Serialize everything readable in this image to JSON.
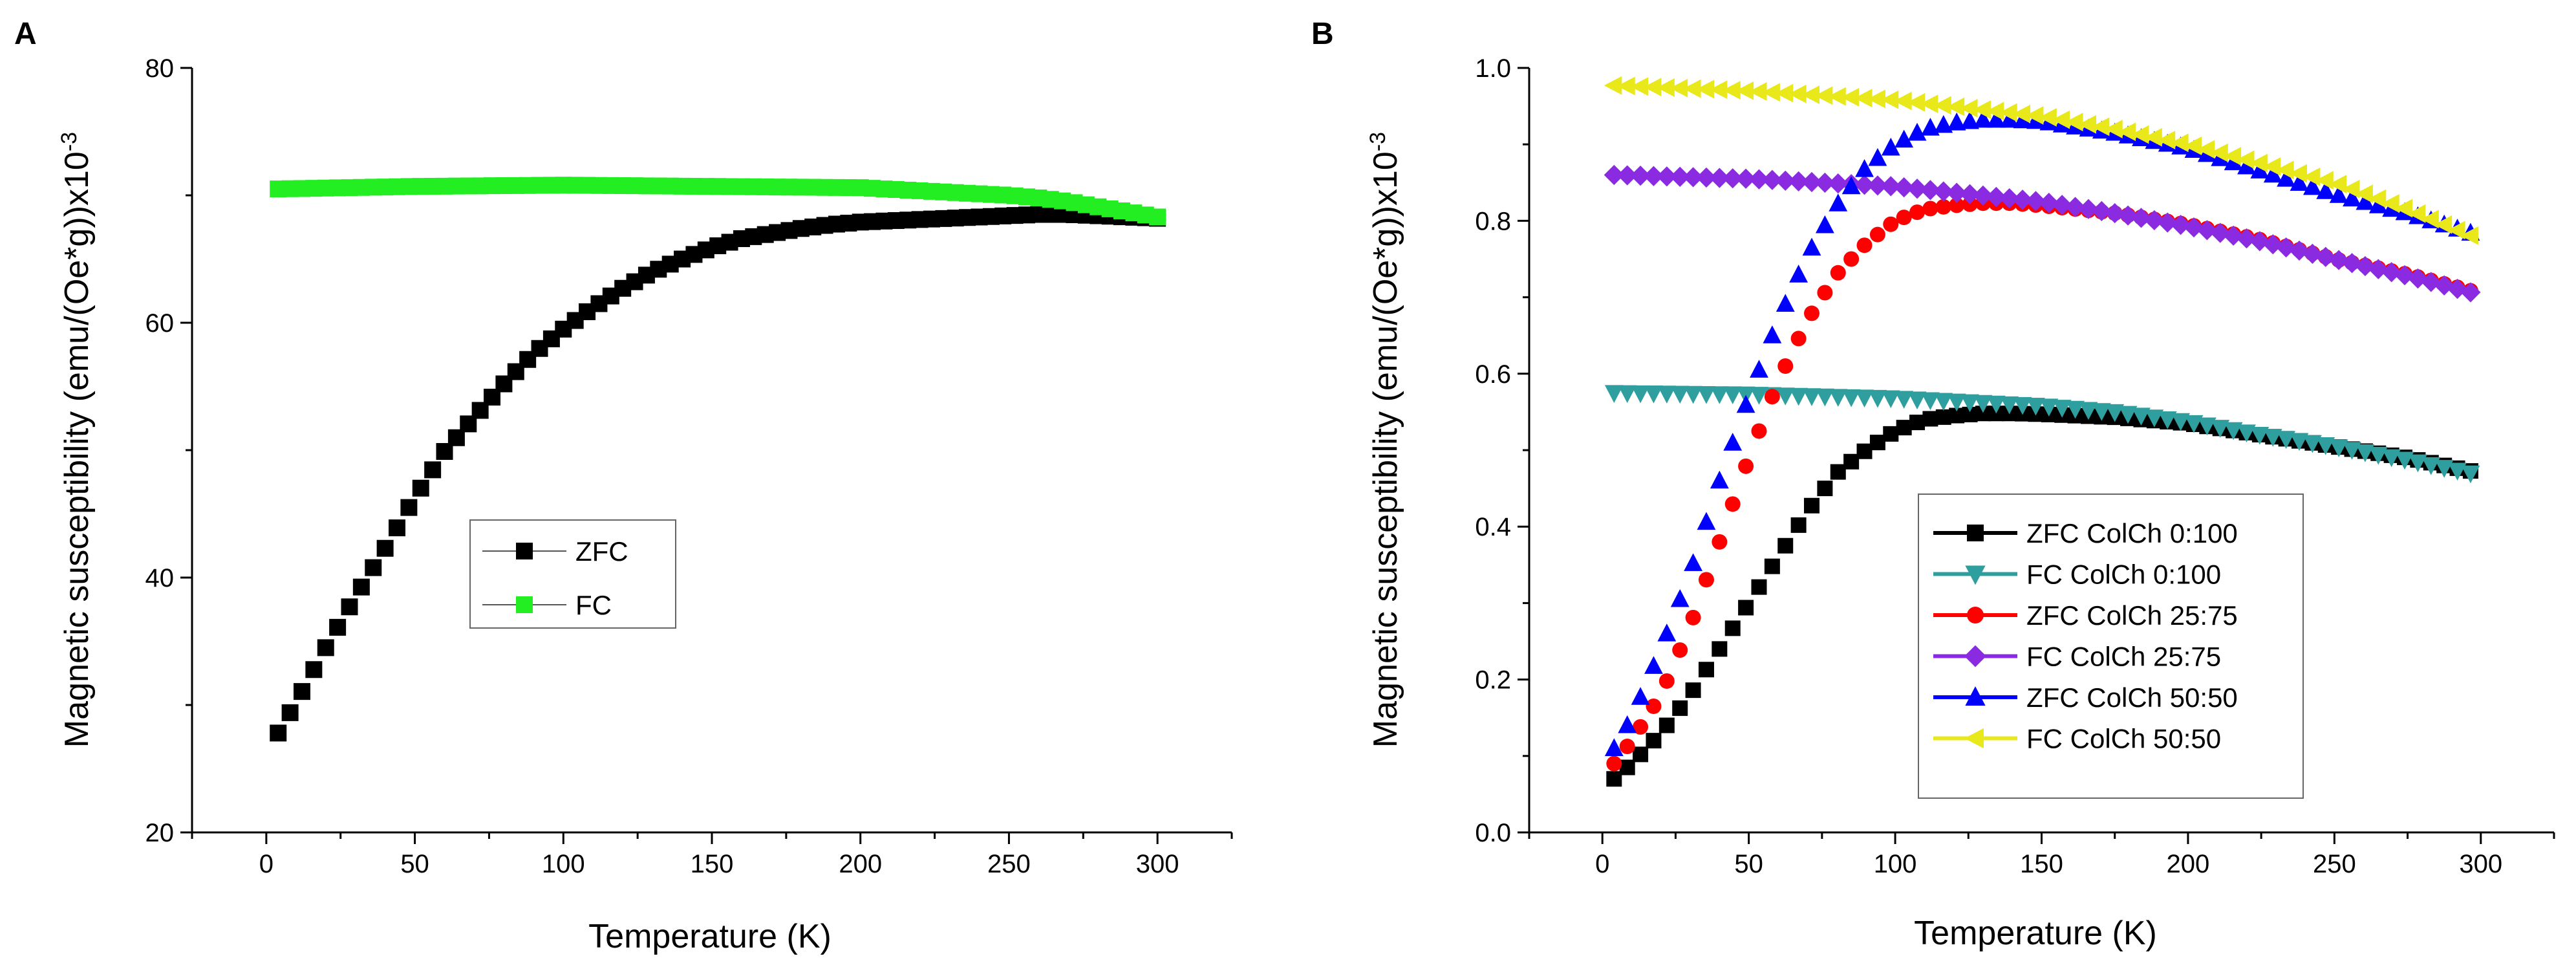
{
  "chart_data": [
    {
      "panel_label": "A",
      "type": "scatter",
      "xlabel": "Temperature (K)",
      "ylabel": "Magnetic susceptibility (emu/(Oe*g))x10",
      "ylabel_exponent": "-3",
      "xlim": [
        -25,
        325
      ],
      "ylim": [
        20,
        80
      ],
      "xticks": [
        0,
        50,
        100,
        150,
        200,
        250,
        300
      ],
      "yticks": [
        20,
        40,
        60,
        80
      ],
      "grid": false,
      "legend_position": "center-left",
      "series": [
        {
          "name": "ZFC",
          "color": "#000000",
          "marker": "square",
          "curve": {
            "x": [
              4,
              10,
              20,
              30,
              40,
              50,
              60,
              70,
              80,
              90,
              100,
              110,
              120,
              130,
              140,
              150,
              160,
              170,
              180,
              190,
              200,
              210,
              220,
              230,
              240,
              250,
              260,
              270,
              280,
              290,
              300
            ],
            "y": [
              27.8,
              30.2,
              34.5,
              38.5,
              42.3,
              46.3,
              49.9,
              52.6,
              55.2,
              57.6,
              59.5,
              61.2,
              62.7,
              64.0,
              65.0,
              65.9,
              66.6,
              67.0,
              67.4,
              67.7,
              67.9,
              68.0,
              68.1,
              68.2,
              68.3,
              68.4,
              68.5,
              68.5,
              68.4,
              68.3,
              68.2
            ]
          }
        },
        {
          "name": "FC",
          "color": "#22ee22",
          "marker": "square",
          "curve": {
            "x": [
              4,
              50,
              100,
              150,
              200,
              250,
              260,
              270,
              280,
              290,
              300
            ],
            "y": [
              70.5,
              70.7,
              70.8,
              70.7,
              70.6,
              70.0,
              69.8,
              69.5,
              69.1,
              68.7,
              68.3
            ]
          }
        }
      ]
    },
    {
      "panel_label": "B",
      "type": "scatter",
      "xlabel": "Temperature (K)",
      "ylabel": "Magnetic susceptibility (emu/(Oe*g))x10",
      "ylabel_exponent": "-3",
      "xlim": [
        -25,
        325
      ],
      "ylim": [
        0,
        1.0
      ],
      "xticks": [
        0,
        50,
        100,
        150,
        200,
        250,
        300
      ],
      "yticks": [
        0.0,
        0.2,
        0.4,
        0.6,
        0.8,
        1.0
      ],
      "ytick_labels": [
        "0.0",
        "0.2",
        "0.4",
        "0.6",
        "0.8",
        "1.0"
      ],
      "grid": false,
      "legend_position": "bottom-center",
      "series": [
        {
          "name": "ZFC ColCh 0:100",
          "color": "#000000",
          "marker": "square",
          "curve": {
            "x": [
              4,
              10,
              20,
              30,
              40,
              50,
              60,
              70,
              80,
              90,
              100,
              110,
              120,
              130,
              140,
              150,
              175,
              200,
              225,
              250,
              275,
              300
            ],
            "y": [
              0.07,
              0.09,
              0.13,
              0.18,
              0.24,
              0.3,
              0.36,
              0.42,
              0.47,
              0.5,
              0.525,
              0.54,
              0.545,
              0.548,
              0.548,
              0.547,
              0.543,
              0.535,
              0.52,
              0.505,
              0.49,
              0.47
            ]
          }
        },
        {
          "name": "FC ColCh 0:100",
          "color": "#2e9e9e",
          "marker": "triangle-down",
          "curve": {
            "x": [
              4,
              50,
              100,
              150,
              175,
              200,
              225,
              250,
              275,
              300
            ],
            "y": [
              0.575,
              0.573,
              0.568,
              0.558,
              0.55,
              0.537,
              0.52,
              0.505,
              0.487,
              0.467
            ]
          }
        },
        {
          "name": "ZFC ColCh 25:75",
          "color": "#ff0000",
          "marker": "circle",
          "curve": {
            "x": [
              4,
              10,
              20,
              30,
              40,
              50,
              60,
              70,
              80,
              90,
              100,
              110,
              120,
              130,
              140,
              150,
              175,
              200,
              225,
              250,
              275,
              300
            ],
            "y": [
              0.09,
              0.12,
              0.18,
              0.27,
              0.38,
              0.49,
              0.59,
              0.67,
              0.73,
              0.77,
              0.8,
              0.815,
              0.82,
              0.823,
              0.823,
              0.82,
              0.81,
              0.795,
              0.775,
              0.75,
              0.73,
              0.705
            ]
          }
        },
        {
          "name": "FC ColCh 25:75",
          "color": "#8a2be2",
          "marker": "diamond",
          "curve": {
            "x": [
              4,
              50,
              100,
              150,
              175,
              200,
              225,
              250,
              275,
              300
            ],
            "y": [
              0.86,
              0.855,
              0.845,
              0.825,
              0.81,
              0.793,
              0.773,
              0.75,
              0.728,
              0.703
            ]
          }
        },
        {
          "name": "ZFC ColCh 50:50",
          "color": "#0000ff",
          "marker": "triangle-up",
          "curve": {
            "x": [
              4,
              10,
              20,
              30,
              40,
              50,
              60,
              70,
              80,
              90,
              100,
              110,
              120,
              130,
              140,
              150,
              175,
              200,
              225,
              250,
              275,
              300
            ],
            "y": [
              0.11,
              0.15,
              0.24,
              0.34,
              0.46,
              0.57,
              0.67,
              0.755,
              0.82,
              0.87,
              0.9,
              0.92,
              0.928,
              0.932,
              0.932,
              0.93,
              0.915,
              0.895,
              0.865,
              0.835,
              0.81,
              0.78
            ]
          }
        },
        {
          "name": "FC ColCh 50:50",
          "color": "#e8e81a",
          "marker": "triangle-left",
          "curve": {
            "x": [
              4,
              50,
              100,
              150,
              175,
              200,
              225,
              250,
              275,
              300
            ],
            "y": [
              0.977,
              0.97,
              0.958,
              0.937,
              0.92,
              0.9,
              0.875,
              0.85,
              0.815,
              0.775
            ]
          }
        }
      ]
    }
  ]
}
